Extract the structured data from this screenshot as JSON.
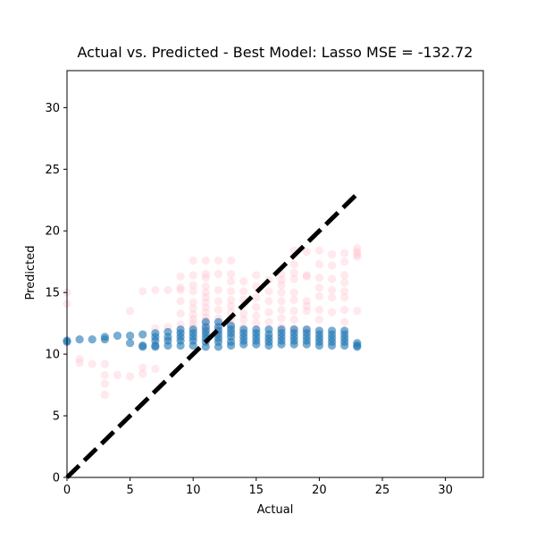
{
  "chart_data": {
    "type": "scatter",
    "title": "Actual vs. Predicted - Best Model: Lasso MSE = -132.72",
    "xlabel": "Actual",
    "ylabel": "Predicted",
    "xlim": [
      0,
      33
    ],
    "ylim": [
      0,
      33
    ],
    "xticks": [
      "0",
      "5",
      "10",
      "15",
      "20",
      "25",
      "30"
    ],
    "yticks": [
      "0",
      "5",
      "10",
      "15",
      "20",
      "25",
      "30"
    ],
    "grid": false,
    "reference_line": {
      "style": "dashed",
      "color": "#000000",
      "points": [
        [
          0,
          0
        ],
        [
          23,
          23
        ]
      ]
    },
    "series": [
      {
        "color": "#ffc0cb",
        "opacity": 0.35,
        "points": [
          [
            0,
            15.0
          ],
          [
            0,
            14.1
          ],
          [
            1,
            9.6
          ],
          [
            1,
            9.3
          ],
          [
            2,
            9.2
          ],
          [
            3,
            9.2
          ],
          [
            3,
            8.3
          ],
          [
            3,
            7.6
          ],
          [
            3,
            6.7
          ],
          [
            4,
            8.3
          ],
          [
            5,
            13.5
          ],
          [
            5,
            8.2
          ],
          [
            6,
            15.1
          ],
          [
            6,
            8.9
          ],
          [
            6,
            8.4
          ],
          [
            7,
            15.2
          ],
          [
            7,
            12.1
          ],
          [
            7,
            8.8
          ],
          [
            8,
            15.2
          ],
          [
            8,
            12.2
          ],
          [
            9,
            16.3
          ],
          [
            9,
            15.4
          ],
          [
            9,
            15.2
          ],
          [
            9,
            14.3
          ],
          [
            9,
            13.3
          ],
          [
            9,
            12.4
          ],
          [
            10,
            17.6
          ],
          [
            10,
            16.4
          ],
          [
            10,
            15.6
          ],
          [
            10,
            15.1
          ],
          [
            10,
            14.2
          ],
          [
            10,
            13.7
          ],
          [
            10,
            13.2
          ],
          [
            10,
            12.8
          ],
          [
            10,
            12.5
          ],
          [
            10,
            12.2
          ],
          [
            11,
            17.6
          ],
          [
            11,
            16.5
          ],
          [
            11,
            16.2
          ],
          [
            11,
            15.5
          ],
          [
            11,
            15.0
          ],
          [
            11,
            14.6
          ],
          [
            11,
            14.2
          ],
          [
            11,
            13.8
          ],
          [
            11,
            13.4
          ],
          [
            11,
            13.0
          ],
          [
            11,
            12.7
          ],
          [
            11,
            12.4
          ],
          [
            11,
            12.1
          ],
          [
            11,
            11.8
          ],
          [
            12,
            17.6
          ],
          [
            12,
            16.5
          ],
          [
            12,
            15.2
          ],
          [
            12,
            14.3
          ],
          [
            12,
            13.6
          ],
          [
            12,
            12.9
          ],
          [
            12,
            12.3
          ],
          [
            12,
            11.9
          ],
          [
            13,
            17.6
          ],
          [
            13,
            16.5
          ],
          [
            13,
            15.9
          ],
          [
            13,
            15.1
          ],
          [
            13,
            14.4
          ],
          [
            13,
            13.9
          ],
          [
            13,
            13.4
          ],
          [
            13,
            12.9
          ],
          [
            13,
            12.4
          ],
          [
            14,
            15.9
          ],
          [
            14,
            15.1
          ],
          [
            14,
            14.4
          ],
          [
            14,
            13.3
          ],
          [
            14,
            12.8
          ],
          [
            14,
            12.2
          ],
          [
            15,
            16.4
          ],
          [
            15,
            15.5
          ],
          [
            15,
            14.6
          ],
          [
            15,
            13.8
          ],
          [
            15,
            13.1
          ],
          [
            15,
            12.5
          ],
          [
            16,
            16.0
          ],
          [
            16,
            15.1
          ],
          [
            16,
            14.3
          ],
          [
            16,
            13.4
          ],
          [
            16,
            12.6
          ],
          [
            17,
            16.5
          ],
          [
            17,
            16.0
          ],
          [
            17,
            15.6
          ],
          [
            17,
            15.0
          ],
          [
            17,
            14.3
          ],
          [
            17,
            13.6
          ],
          [
            17,
            12.9
          ],
          [
            17,
            12.2
          ],
          [
            18,
            18.4
          ],
          [
            18,
            17.3
          ],
          [
            18,
            16.6
          ],
          [
            18,
            16.1
          ],
          [
            18,
            15.0
          ],
          [
            18,
            14.4
          ],
          [
            18,
            13.5
          ],
          [
            18,
            12.8
          ],
          [
            18,
            12.1
          ],
          [
            19,
            18.3
          ],
          [
            19,
            16.4
          ],
          [
            19,
            16.3
          ],
          [
            19,
            14.3
          ],
          [
            19,
            13.9
          ],
          [
            19,
            13.5
          ],
          [
            19,
            12.0
          ],
          [
            20,
            18.4
          ],
          [
            20,
            17.3
          ],
          [
            20,
            16.2
          ],
          [
            20,
            15.4
          ],
          [
            20,
            14.7
          ],
          [
            20,
            13.6
          ],
          [
            20,
            12.8
          ],
          [
            21,
            18.1
          ],
          [
            21,
            17.2
          ],
          [
            21,
            16.1
          ],
          [
            21,
            15.2
          ],
          [
            21,
            14.6
          ],
          [
            21,
            13.4
          ],
          [
            22,
            18.2
          ],
          [
            22,
            17.5
          ],
          [
            22,
            16.4
          ],
          [
            22,
            15.8
          ],
          [
            22,
            15.1
          ],
          [
            22,
            14.6
          ],
          [
            22,
            13.6
          ],
          [
            22,
            12.6
          ],
          [
            23,
            18.6
          ],
          [
            23,
            18.3
          ],
          [
            23,
            18.1
          ],
          [
            23,
            17.9
          ],
          [
            23,
            13.5
          ]
        ]
      },
      {
        "color": "#1f77b4",
        "opacity": 0.6,
        "points": [
          [
            0,
            11.1
          ],
          [
            0,
            11.0
          ],
          [
            1,
            11.2
          ],
          [
            2,
            11.2
          ],
          [
            3,
            11.4
          ],
          [
            3,
            11.2
          ],
          [
            4,
            11.5
          ],
          [
            5,
            11.5
          ],
          [
            5,
            10.9
          ],
          [
            6,
            11.6
          ],
          [
            6,
            10.7
          ],
          [
            6,
            10.6
          ],
          [
            7,
            11.7
          ],
          [
            7,
            11.4
          ],
          [
            7,
            11.1
          ],
          [
            7,
            10.7
          ],
          [
            7,
            10.6
          ],
          [
            8,
            11.8
          ],
          [
            8,
            11.4
          ],
          [
            8,
            11.1
          ],
          [
            8,
            10.7
          ],
          [
            9,
            12.0
          ],
          [
            9,
            11.7
          ],
          [
            9,
            11.4
          ],
          [
            9,
            11.1
          ],
          [
            9,
            10.7
          ],
          [
            10,
            12.0
          ],
          [
            10,
            11.7
          ],
          [
            10,
            11.4
          ],
          [
            10,
            11.1
          ],
          [
            10,
            10.7
          ],
          [
            11,
            12.6
          ],
          [
            11,
            12.2
          ],
          [
            11,
            11.9
          ],
          [
            11,
            11.6
          ],
          [
            11,
            11.3
          ],
          [
            11,
            11.0
          ],
          [
            11,
            10.6
          ],
          [
            12,
            12.6
          ],
          [
            12,
            12.2
          ],
          [
            12,
            11.9
          ],
          [
            12,
            11.6
          ],
          [
            12,
            11.3
          ],
          [
            12,
            11.0
          ],
          [
            12,
            10.6
          ],
          [
            13,
            12.3
          ],
          [
            13,
            12.0
          ],
          [
            13,
            11.7
          ],
          [
            13,
            11.4
          ],
          [
            13,
            11.0
          ],
          [
            13,
            10.7
          ],
          [
            14,
            12.0
          ],
          [
            14,
            11.7
          ],
          [
            14,
            11.4
          ],
          [
            14,
            11.1
          ],
          [
            14,
            10.8
          ],
          [
            15,
            12.0
          ],
          [
            15,
            11.7
          ],
          [
            15,
            11.4
          ],
          [
            15,
            11.1
          ],
          [
            15,
            10.8
          ],
          [
            16,
            12.0
          ],
          [
            16,
            11.6
          ],
          [
            16,
            11.3
          ],
          [
            16,
            11.0
          ],
          [
            16,
            10.7
          ],
          [
            17,
            12.0
          ],
          [
            17,
            11.7
          ],
          [
            17,
            11.4
          ],
          [
            17,
            11.1
          ],
          [
            17,
            10.8
          ],
          [
            18,
            12.0
          ],
          [
            18,
            11.7
          ],
          [
            18,
            11.4
          ],
          [
            18,
            11.1
          ],
          [
            18,
            10.8
          ],
          [
            19,
            12.0
          ],
          [
            19,
            11.7
          ],
          [
            19,
            11.4
          ],
          [
            19,
            11.1
          ],
          [
            19,
            10.8
          ],
          [
            20,
            11.9
          ],
          [
            20,
            11.6
          ],
          [
            20,
            11.3
          ],
          [
            20,
            11.0
          ],
          [
            20,
            10.7
          ],
          [
            21,
            11.9
          ],
          [
            21,
            11.6
          ],
          [
            21,
            11.3
          ],
          [
            21,
            11.0
          ],
          [
            21,
            10.7
          ],
          [
            22,
            11.9
          ],
          [
            22,
            11.6
          ],
          [
            22,
            11.3
          ],
          [
            22,
            11.0
          ],
          [
            22,
            10.7
          ],
          [
            23,
            10.9
          ],
          [
            23,
            10.7
          ],
          [
            23,
            10.6
          ]
        ]
      }
    ]
  }
}
